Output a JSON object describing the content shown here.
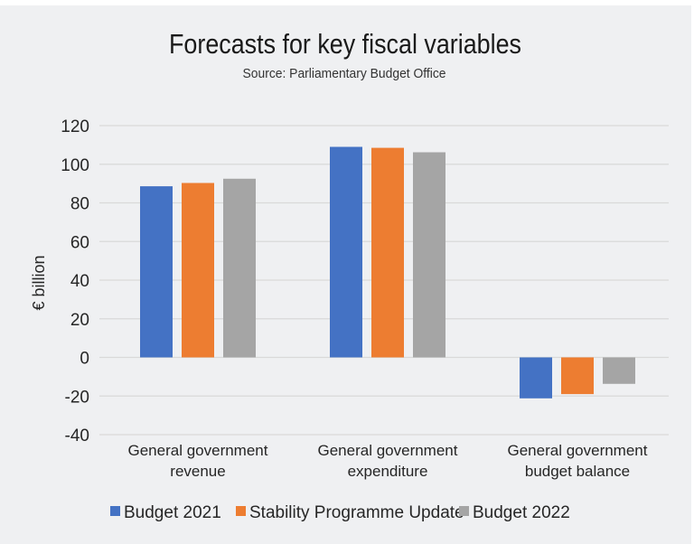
{
  "chart_data": {
    "type": "bar",
    "title": "Forecasts for key fiscal variables",
    "subtitle": "Source: Parliamentary Budget Office",
    "xlabel": "",
    "ylabel": "€ billion",
    "ylim": [
      -40,
      120
    ],
    "yticks": [
      120,
      100,
      80,
      60,
      40,
      20,
      0,
      -20,
      -40
    ],
    "grid": true,
    "legend_position": "bottom",
    "categories": [
      [
        "General government",
        "revenue"
      ],
      [
        "General government",
        "expenditure"
      ],
      [
        "General government",
        "budget balance"
      ]
    ],
    "series": [
      {
        "name": "Budget 2021",
        "color": "#4472c4",
        "values": [
          88.6,
          109.0,
          -21.2
        ]
      },
      {
        "name": "Stability Programme Update",
        "color": "#ed7d31",
        "values": [
          90.3,
          108.5,
          -19.0
        ]
      },
      {
        "name": "Budget 2022",
        "color": "#a5a5a5",
        "values": [
          92.5,
          106.2,
          -13.7
        ]
      }
    ]
  }
}
